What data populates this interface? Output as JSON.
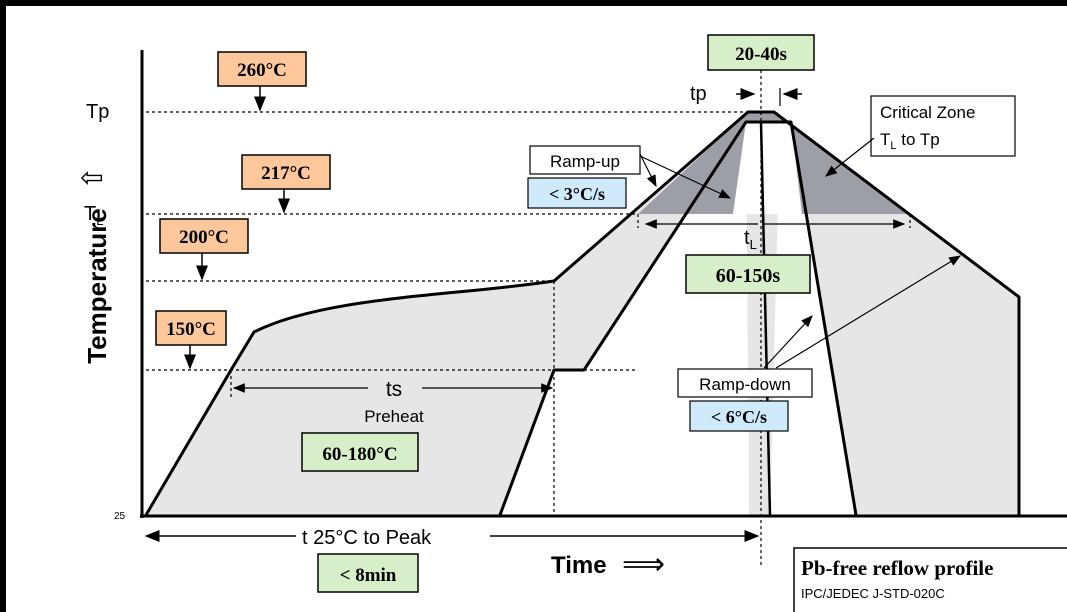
{
  "axes": {
    "y_label": "Temperature",
    "x_label": "Time",
    "y_arrow": "⇧",
    "x_arrow": "⟹",
    "tp_label": "Tp",
    "tl_label_main": "T",
    "tl_label_sub": "L",
    "origin_label": "25"
  },
  "temperature_boxes": {
    "t260": "260°C",
    "t217": "217°C",
    "t200": "200°C",
    "t150": "150°C"
  },
  "time_boxes": {
    "peak_time": "20-40s",
    "tl_time": "60-150s",
    "preheat_range": "60-180°C",
    "total_time": "< 8min",
    "ramp_up_rate": "< 3°C/s",
    "ramp_down_rate": "< 6°C/s"
  },
  "annotations": {
    "tp_marker": "tp",
    "ramp_up": "Ramp-up",
    "ramp_down": "Ramp-down",
    "critical_line1": "Critical Zone",
    "critical_line2_a": "T",
    "critical_line2_sub": "L",
    "critical_line2_b": " to Tp",
    "tl_marker_main": "t",
    "tl_marker_sub": "L",
    "ts_marker": "ts",
    "preheat": "Preheat",
    "total_span": "t  25°C to Peak"
  },
  "legend": {
    "title": "Pb-free reflow profile",
    "subtitle": "IPC/JEDEC J-STD-020C"
  },
  "colors": {
    "temp_box_fill": "#fcc89b",
    "time_box_fill": "#d7efc9",
    "rate_box_fill": "#cfeafa",
    "profile_fill": "#e6e6e6",
    "critical_fill": "#9a9aa2"
  }
}
